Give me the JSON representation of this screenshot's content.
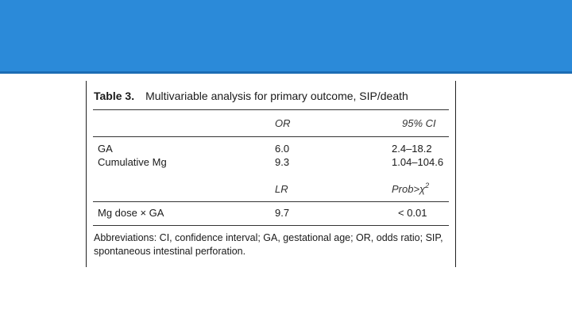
{
  "table": {
    "label": "Table 3.",
    "title": "Multivariable analysis for primary outcome, SIP/death",
    "header1": {
      "col2": "OR",
      "col3": "95% CI"
    },
    "rows1": [
      {
        "name": "GA",
        "value": "6.0",
        "ci": "2.4–18.2"
      },
      {
        "name": "Cumulative Mg",
        "value": "9.3",
        "ci": "1.04–104.6"
      }
    ],
    "header2": {
      "col2": "LR",
      "col3_prefix": "Prob>χ",
      "col3_sup": "2"
    },
    "rows2": [
      {
        "name": "Mg dose × GA",
        "value": "9.7",
        "p": "< 0.01"
      }
    ],
    "footnote": "Abbreviations: CI, confidence interval; GA, gestational age; OR, odds ratio; SIP, spontaneous intestinal perforation."
  }
}
